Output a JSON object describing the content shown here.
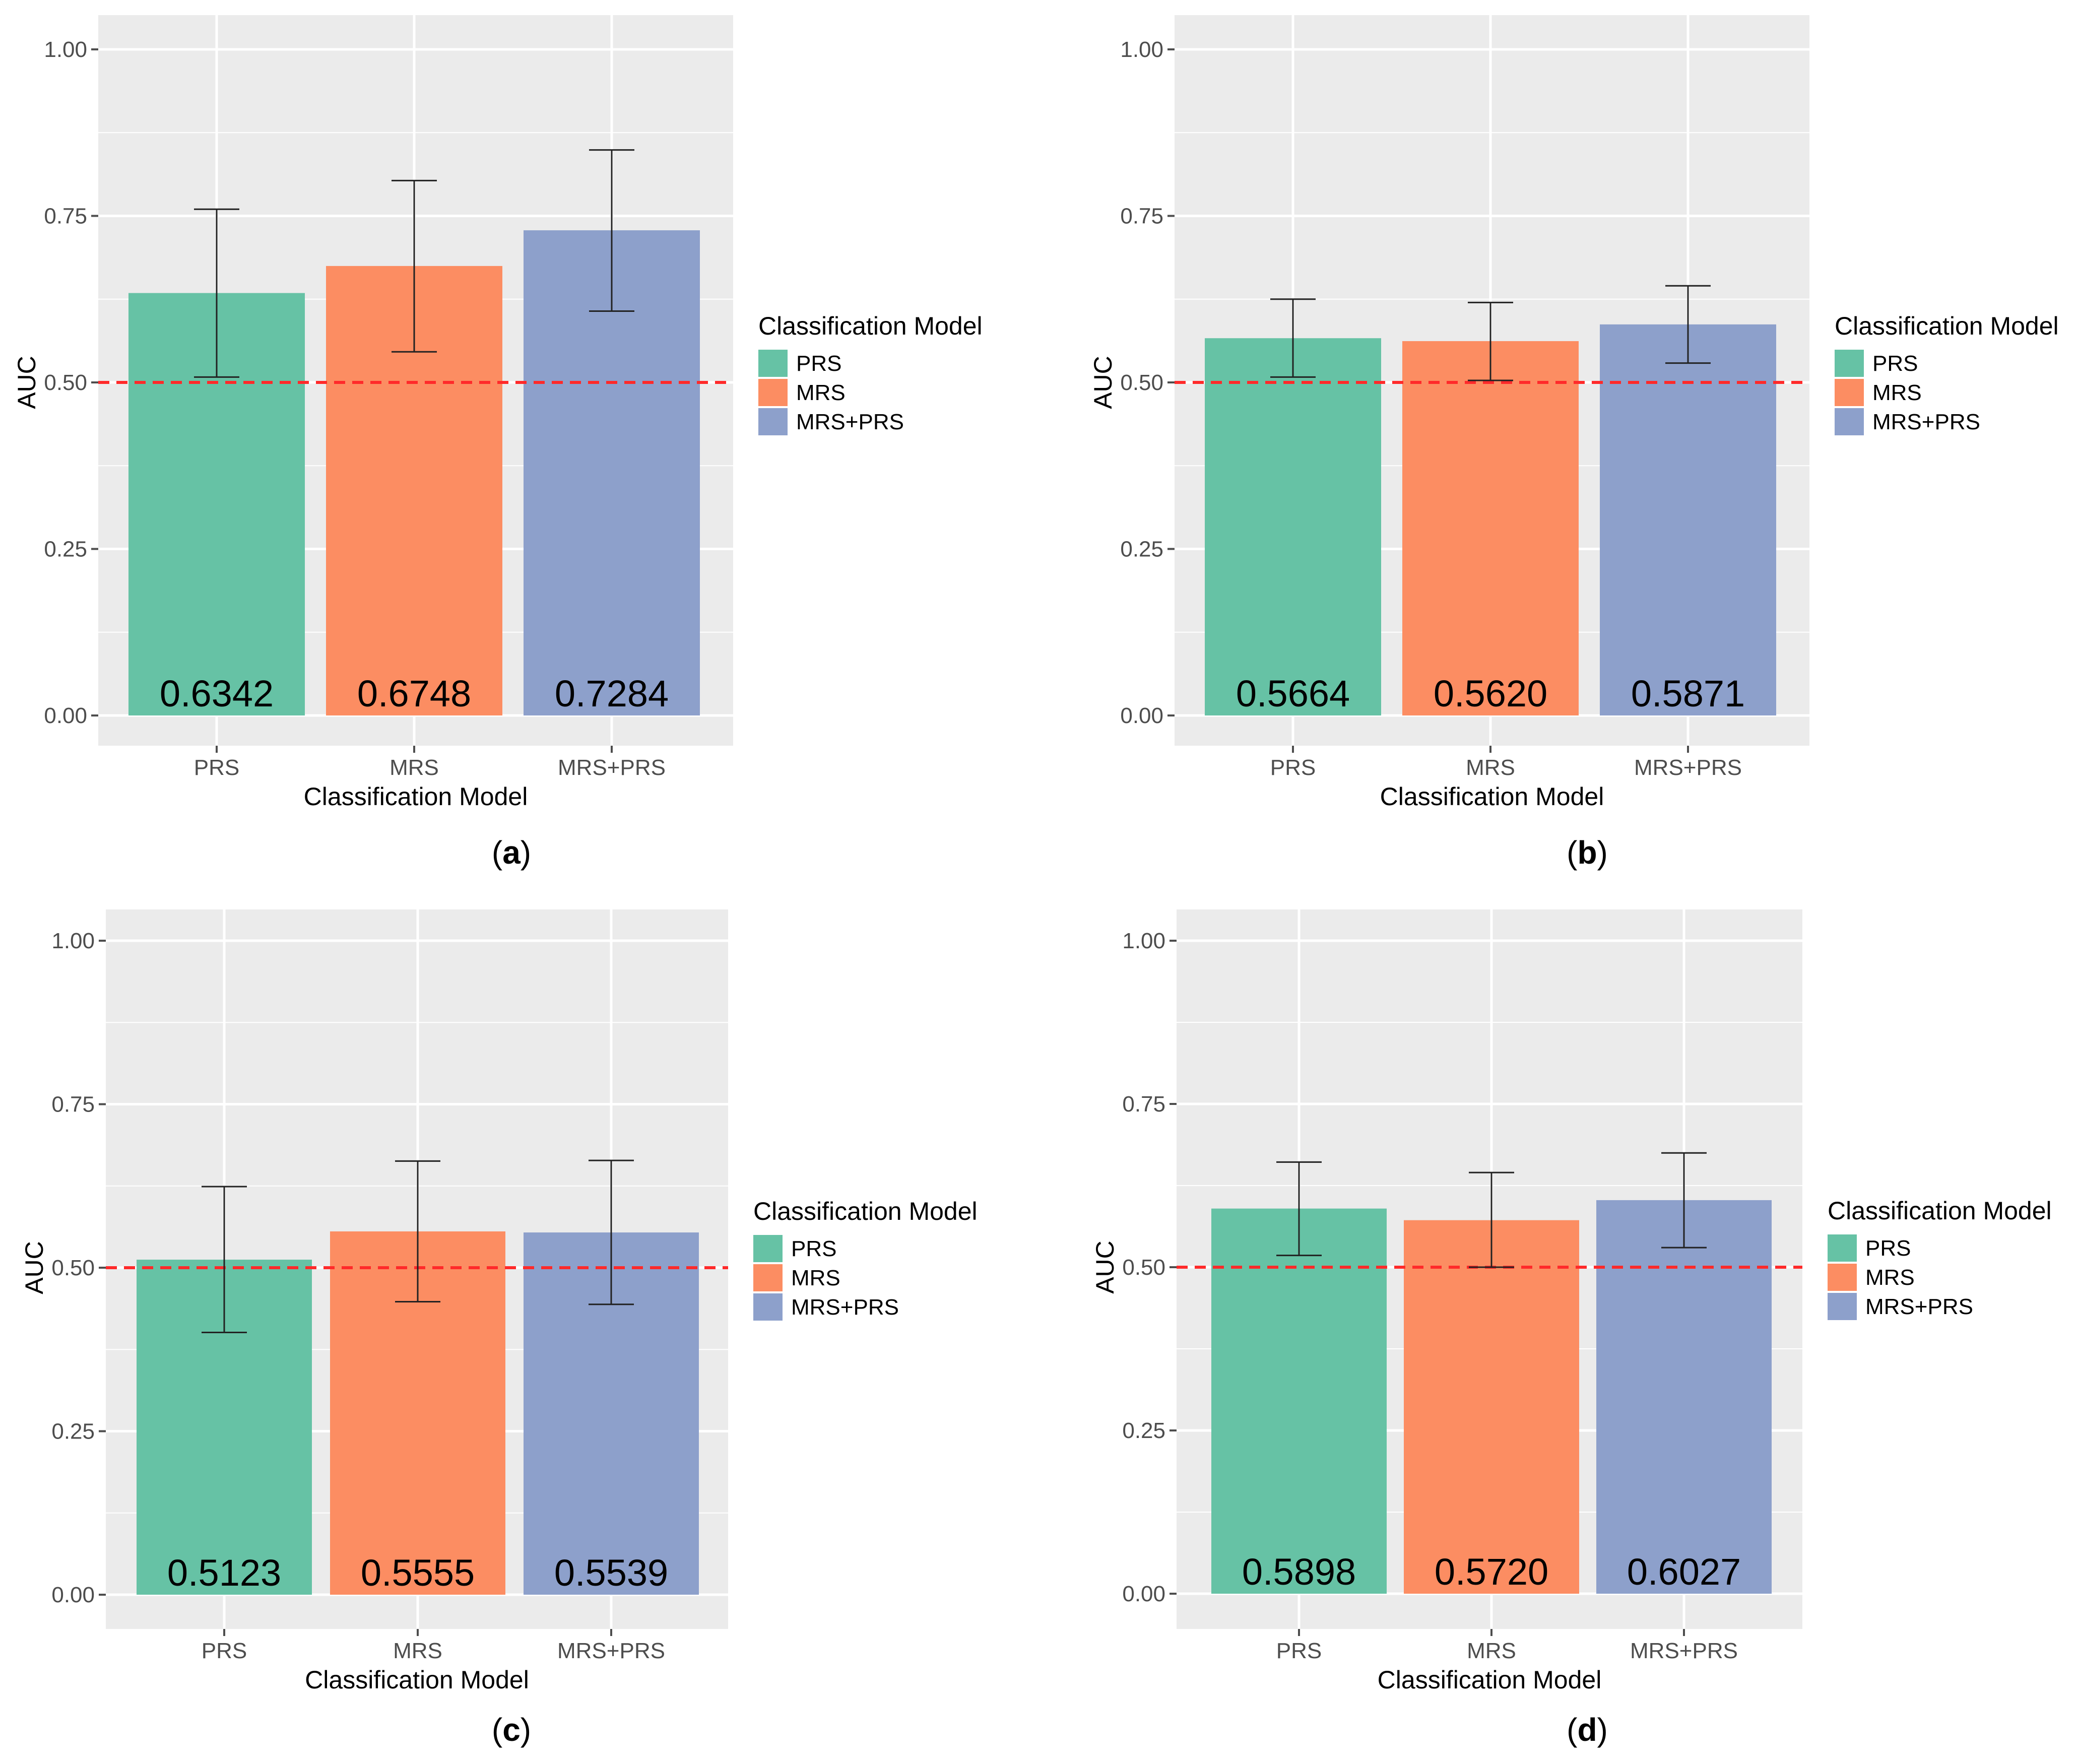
{
  "colors": {
    "panel_background": "#ebebeb",
    "gridline": "#ffffff",
    "reference_line": "#ff2a2a",
    "text": "#000000",
    "tick_text": "#4d4d4d",
    "PRS": "#66c2a5",
    "MRS": "#fc8d62",
    "MRS+PRS": "#8da0cb"
  },
  "chart_data": [
    {
      "type": "bar",
      "caption": "a",
      "xlabel": "Classification Model",
      "ylabel": "AUC",
      "ylim": [
        0,
        1.0
      ],
      "yticks": [
        "0.00",
        "0.25",
        "0.50",
        "0.75",
        "1.00"
      ],
      "reference_line": 0.5,
      "legend_title": "Classification Model",
      "legend_position": "right",
      "categories": [
        "PRS",
        "MRS",
        "MRS+PRS"
      ],
      "values": [
        0.6342,
        0.6748,
        0.7284
      ],
      "labels": [
        "0.6342",
        "0.6748",
        "0.7284"
      ],
      "error_low": [
        0.508,
        0.546,
        0.607
      ],
      "error_high": [
        0.76,
        0.803,
        0.849
      ]
    },
    {
      "type": "bar",
      "caption": "b",
      "xlabel": "Classification Model",
      "ylabel": "AUC",
      "ylim": [
        0,
        1.0
      ],
      "yticks": [
        "0.00",
        "0.25",
        "0.50",
        "0.75",
        "1.00"
      ],
      "reference_line": 0.5,
      "legend_title": "Classification Model",
      "legend_position": "right",
      "categories": [
        "PRS",
        "MRS",
        "MRS+PRS"
      ],
      "values": [
        0.5664,
        0.562,
        0.5871
      ],
      "labels": [
        "0.5664",
        "0.5620",
        "0.5871"
      ],
      "error_low": [
        0.508,
        0.503,
        0.529
      ],
      "error_high": [
        0.625,
        0.62,
        0.645
      ]
    },
    {
      "type": "bar",
      "caption": "c",
      "xlabel": "Classification Model",
      "ylabel": "AUC",
      "ylim": [
        0,
        1.0
      ],
      "yticks": [
        "0.00",
        "0.25",
        "0.50",
        "0.75",
        "1.00"
      ],
      "reference_line": 0.5,
      "legend_title": "Classification Model",
      "legend_position": "right",
      "categories": [
        "PRS",
        "MRS",
        "MRS+PRS"
      ],
      "values": [
        0.5123,
        0.5555,
        0.5539
      ],
      "labels": [
        "0.5123",
        "0.5555",
        "0.5539"
      ],
      "error_low": [
        0.401,
        0.448,
        0.444
      ],
      "error_high": [
        0.624,
        0.663,
        0.664
      ]
    },
    {
      "type": "bar",
      "caption": "d",
      "xlabel": "Classification Model",
      "ylabel": "AUC",
      "ylim": [
        0,
        1.0
      ],
      "yticks": [
        "0.00",
        "0.25",
        "0.50",
        "0.75",
        "1.00"
      ],
      "reference_line": 0.5,
      "legend_title": "Classification Model",
      "legend_position": "right",
      "categories": [
        "PRS",
        "MRS",
        "MRS+PRS"
      ],
      "values": [
        0.5898,
        0.572,
        0.6027
      ],
      "labels": [
        "0.5898",
        "0.5720",
        "0.6027"
      ],
      "error_low": [
        0.518,
        0.5,
        0.53
      ],
      "error_high": [
        0.661,
        0.645,
        0.675
      ]
    }
  ]
}
